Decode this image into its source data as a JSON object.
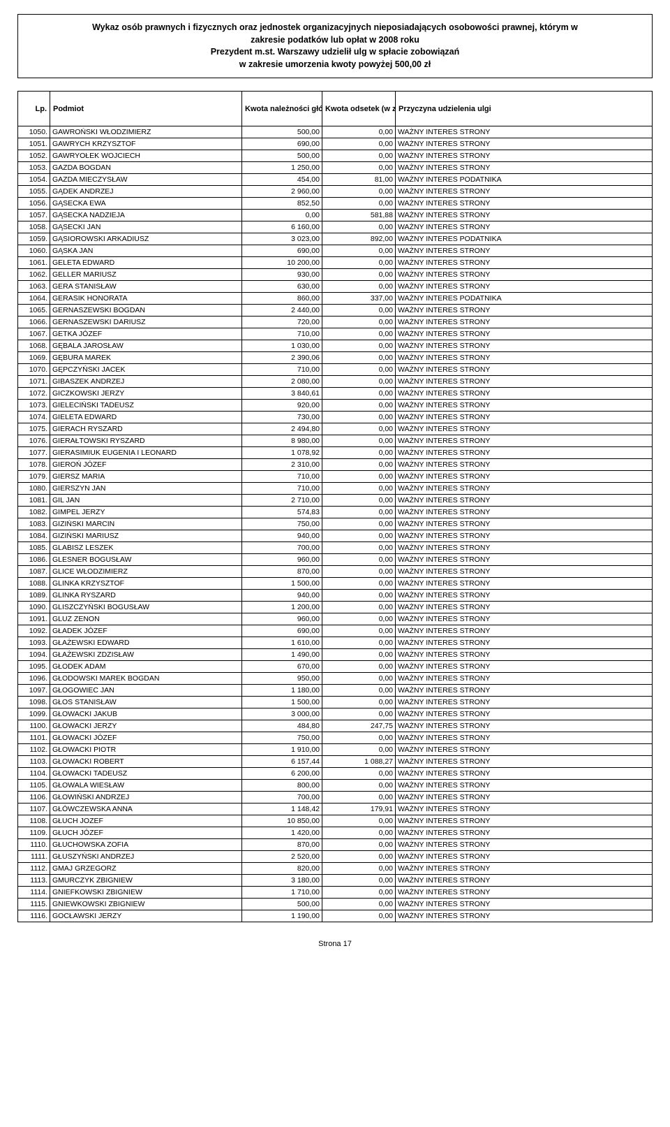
{
  "header": {
    "line1": "Wykaz osób prawnych i fizycznych oraz jednostek organizacyjnych nieposiadających osobowości prawnej, którym w",
    "line2": "zakresie podatków lub opłat w 2008 roku",
    "line3": "Prezydent m.st. Warszawy udzielił ulg w spłacie zobowiązań",
    "line4": "w zakresie umorzenia kwoty powyżej 500,00 zł"
  },
  "columns": {
    "lp": "Lp.",
    "podmiot": "Podmiot",
    "naleznosc": "Kwota należności głównej (w zł)",
    "odsetki": "Kwota odsetek (w zł)",
    "przyczyna": "Przyczyna udzielenia ulgi"
  },
  "rows": [
    {
      "lp": "1050.",
      "pod": "GAWROŃSKI WŁODZIMIERZ",
      "nal": "500,00",
      "ods": "0,00",
      "prz": "WAŻNY INTERES STRONY"
    },
    {
      "lp": "1051.",
      "pod": "GAWRYCH KRZYSZTOF",
      "nal": "690,00",
      "ods": "0,00",
      "prz": "WAŻNY INTERES STRONY"
    },
    {
      "lp": "1052.",
      "pod": "GAWRYOŁEK WOJCIECH",
      "nal": "500,00",
      "ods": "0,00",
      "prz": "WAŻNY INTERES STRONY"
    },
    {
      "lp": "1053.",
      "pod": "GAZDA BOGDAN",
      "nal": "1 250,00",
      "ods": "0,00",
      "prz": "WAŻNY INTERES STRONY"
    },
    {
      "lp": "1054.",
      "pod": "GAZDA MIECZYSŁAW",
      "nal": "454,00",
      "ods": "81,00",
      "prz": "WAŻNY INTERES PODATNIKA"
    },
    {
      "lp": "1055.",
      "pod": "GĄDEK ANDRZEJ",
      "nal": "2 960,00",
      "ods": "0,00",
      "prz": "WAŻNY INTERES STRONY"
    },
    {
      "lp": "1056.",
      "pod": "GĄSECKA EWA",
      "nal": "852,50",
      "ods": "0,00",
      "prz": "WAŻNY INTERES STRONY"
    },
    {
      "lp": "1057.",
      "pod": "GĄSECKA NADZIEJA",
      "nal": "0,00",
      "ods": "581,88",
      "prz": "WAŻNY INTERES STRONY"
    },
    {
      "lp": "1058.",
      "pod": "GĄSECKI JAN",
      "nal": "6 160,00",
      "ods": "0,00",
      "prz": "WAŻNY INTERES STRONY"
    },
    {
      "lp": "1059.",
      "pod": "GĄSIOROWSKI ARKADIUSZ",
      "nal": "3 023,00",
      "ods": "892,00",
      "prz": "WAŻNY INTERES PODATNIKA"
    },
    {
      "lp": "1060.",
      "pod": "GĄSKA JAN",
      "nal": "690,00",
      "ods": "0,00",
      "prz": "WAŻNY INTERES STRONY"
    },
    {
      "lp": "1061.",
      "pod": "GELETA EDWARD",
      "nal": "10 200,00",
      "ods": "0,00",
      "prz": "WAŻNY INTERES STRONY"
    },
    {
      "lp": "1062.",
      "pod": "GELLER MARIUSZ",
      "nal": "930,00",
      "ods": "0,00",
      "prz": "WAŻNY INTERES STRONY"
    },
    {
      "lp": "1063.",
      "pod": "GERA STANISŁAW",
      "nal": "630,00",
      "ods": "0,00",
      "prz": "WAŻNY INTERES STRONY"
    },
    {
      "lp": "1064.",
      "pod": "GERASIK HONORATA",
      "nal": "860,00",
      "ods": "337,00",
      "prz": "WAŻNY INTERES PODATNIKA"
    },
    {
      "lp": "1065.",
      "pod": "GERNASZEWSKI BOGDAN",
      "nal": "2 440,00",
      "ods": "0,00",
      "prz": "WAŻNY INTERES STRONY"
    },
    {
      "lp": "1066.",
      "pod": "GERNASZEWSKI DARIUSZ",
      "nal": "720,00",
      "ods": "0,00",
      "prz": "WAŻNY INTERES STRONY"
    },
    {
      "lp": "1067.",
      "pod": "GETKA JÓZEF",
      "nal": "710,00",
      "ods": "0,00",
      "prz": "WAŻNY INTERES STRONY"
    },
    {
      "lp": "1068.",
      "pod": "GĘBALA JAROSŁAW",
      "nal": "1 030,00",
      "ods": "0,00",
      "prz": "WAŻNY INTERES STRONY"
    },
    {
      "lp": "1069.",
      "pod": "GĘBURA MAREK",
      "nal": "2 390,06",
      "ods": "0,00",
      "prz": "WAŻNY INTERES STRONY"
    },
    {
      "lp": "1070.",
      "pod": "GĘPCZYŃSKI JACEK",
      "nal": "710,00",
      "ods": "0,00",
      "prz": "WAŻNY INTERES STRONY"
    },
    {
      "lp": "1071.",
      "pod": "GIBASZEK ANDRZEJ",
      "nal": "2 080,00",
      "ods": "0,00",
      "prz": "WAŻNY INTERES STRONY"
    },
    {
      "lp": "1072.",
      "pod": "GICZKOWSKI JERZY",
      "nal": "3 840,61",
      "ods": "0,00",
      "prz": "WAŻNY INTERES STRONY"
    },
    {
      "lp": "1073.",
      "pod": "GIELECIŃSKI TADEUSZ",
      "nal": "920,00",
      "ods": "0,00",
      "prz": "WAŻNY INTERES STRONY"
    },
    {
      "lp": "1074.",
      "pod": "GIELETA EDWARD",
      "nal": "730,00",
      "ods": "0,00",
      "prz": "WAŻNY INTERES STRONY"
    },
    {
      "lp": "1075.",
      "pod": "GIERACH RYSZARD",
      "nal": "2 494,80",
      "ods": "0,00",
      "prz": "WAŻNY INTERES STRONY"
    },
    {
      "lp": "1076.",
      "pod": "GIERAŁTOWSKI RYSZARD",
      "nal": "8 980,00",
      "ods": "0,00",
      "prz": "WAŻNY INTERES STRONY"
    },
    {
      "lp": "1077.",
      "pod": "GIERASIMIUK EUGENIA I LEONARD",
      "nal": "1 078,92",
      "ods": "0,00",
      "prz": "WAŻNY INTERES STRONY"
    },
    {
      "lp": "1078.",
      "pod": "GIEROŃ JÓZEF",
      "nal": "2 310,00",
      "ods": "0,00",
      "prz": "WAŻNY INTERES STRONY"
    },
    {
      "lp": "1079.",
      "pod": "GIERSZ MARIA",
      "nal": "710,00",
      "ods": "0,00",
      "prz": "WAŻNY INTERES STRONY"
    },
    {
      "lp": "1080.",
      "pod": "GIERSZYN JAN",
      "nal": "710,00",
      "ods": "0,00",
      "prz": "WAŻNY INTERES STRONY"
    },
    {
      "lp": "1081.",
      "pod": "GIL JAN",
      "nal": "2 710,00",
      "ods": "0,00",
      "prz": "WAŻNY INTERES STRONY"
    },
    {
      "lp": "1082.",
      "pod": "GIMPEL JERZY",
      "nal": "574,83",
      "ods": "0,00",
      "prz": "WAŻNY INTERES STRONY"
    },
    {
      "lp": "1083.",
      "pod": "GIZIŃSKI MARCIN",
      "nal": "750,00",
      "ods": "0,00",
      "prz": "WAŻNY INTERES STRONY"
    },
    {
      "lp": "1084.",
      "pod": "GIZIŃSKI MARIUSZ",
      "nal": "940,00",
      "ods": "0,00",
      "prz": "WAŻNY INTERES STRONY"
    },
    {
      "lp": "1085.",
      "pod": "GLABISZ LESZEK",
      "nal": "700,00",
      "ods": "0,00",
      "prz": "WAŻNY INTERES STRONY"
    },
    {
      "lp": "1086.",
      "pod": "GLESNER BOGUSŁAW",
      "nal": "960,00",
      "ods": "0,00",
      "prz": "WAŻNY INTERES STRONY"
    },
    {
      "lp": "1087.",
      "pod": "GLICE WŁODZIMIERZ",
      "nal": "870,00",
      "ods": "0,00",
      "prz": "WAŻNY INTERES STRONY"
    },
    {
      "lp": "1088.",
      "pod": "GLINKA KRZYSZTOF",
      "nal": "1 500,00",
      "ods": "0,00",
      "prz": "WAŻNY INTERES STRONY"
    },
    {
      "lp": "1089.",
      "pod": "GLINKA RYSZARD",
      "nal": "940,00",
      "ods": "0,00",
      "prz": "WAŻNY INTERES STRONY"
    },
    {
      "lp": "1090.",
      "pod": "GLISZCZYŃSKI BOGUSŁAW",
      "nal": "1 200,00",
      "ods": "0,00",
      "prz": "WAŻNY INTERES STRONY"
    },
    {
      "lp": "1091.",
      "pod": "GLUZ ZENON",
      "nal": "960,00",
      "ods": "0,00",
      "prz": "WAŻNY INTERES STRONY"
    },
    {
      "lp": "1092.",
      "pod": "GŁADEK JÓZEF",
      "nal": "690,00",
      "ods": "0,00",
      "prz": "WAŻNY INTERES STRONY"
    },
    {
      "lp": "1093.",
      "pod": "GŁAŻEWSKI EDWARD",
      "nal": "1 610,00",
      "ods": "0,00",
      "prz": "WAŻNY INTERES STRONY"
    },
    {
      "lp": "1094.",
      "pod": "GŁAŻEWSKI ZDZISŁAW",
      "nal": "1 490,00",
      "ods": "0,00",
      "prz": "WAŻNY INTERES STRONY"
    },
    {
      "lp": "1095.",
      "pod": "GŁODEK ADAM",
      "nal": "670,00",
      "ods": "0,00",
      "prz": "WAŻNY INTERES STRONY"
    },
    {
      "lp": "1096.",
      "pod": "GŁODOWSKI MAREK BOGDAN",
      "nal": "950,00",
      "ods": "0,00",
      "prz": "WAŻNY INTERES STRONY"
    },
    {
      "lp": "1097.",
      "pod": "GŁOGOWIEC JAN",
      "nal": "1 180,00",
      "ods": "0,00",
      "prz": "WAŻNY INTERES STRONY"
    },
    {
      "lp": "1098.",
      "pod": "GŁOS STANISŁAW",
      "nal": "1 500,00",
      "ods": "0,00",
      "prz": "WAŻNY INTERES STRONY"
    },
    {
      "lp": "1099.",
      "pod": "GŁOWACKI JAKUB",
      "nal": "3 000,00",
      "ods": "0,00",
      "prz": "WAŻNY INTERES STRONY"
    },
    {
      "lp": "1100.",
      "pod": "GŁOWACKI JERZY",
      "nal": "484,80",
      "ods": "247,75",
      "prz": "WAŻNY INTERES STRONY"
    },
    {
      "lp": "1101.",
      "pod": "GŁOWACKI JÓZEF",
      "nal": "750,00",
      "ods": "0,00",
      "prz": "WAŻNY INTERES STRONY"
    },
    {
      "lp": "1102.",
      "pod": "GŁOWACKI PIOTR",
      "nal": "1 910,00",
      "ods": "0,00",
      "prz": "WAŻNY INTERES STRONY"
    },
    {
      "lp": "1103.",
      "pod": "GŁOWACKI ROBERT",
      "nal": "6 157,44",
      "ods": "1 088,27",
      "prz": "WAŻNY INTERES STRONY"
    },
    {
      "lp": "1104.",
      "pod": "GŁOWACKI TADEUSZ",
      "nal": "6 200,00",
      "ods": "0,00",
      "prz": "WAŻNY INTERES STRONY"
    },
    {
      "lp": "1105.",
      "pod": "GŁOWALA WIESŁAW",
      "nal": "800,00",
      "ods": "0,00",
      "prz": "WAŻNY INTERES STRONY"
    },
    {
      "lp": "1106.",
      "pod": "GŁOWIŃSKI ANDRZEJ",
      "nal": "700,00",
      "ods": "0,00",
      "prz": "WAŻNY INTERES STRONY"
    },
    {
      "lp": "1107.",
      "pod": "GŁÓWCZEWSKA ANNA",
      "nal": "1 148,42",
      "ods": "179,91",
      "prz": "WAŻNY INTERES STRONY"
    },
    {
      "lp": "1108.",
      "pod": "GŁUCH JOZEF",
      "nal": "10 850,00",
      "ods": "0,00",
      "prz": "WAŻNY INTERES STRONY"
    },
    {
      "lp": "1109.",
      "pod": "GŁUCH JÓZEF",
      "nal": "1 420,00",
      "ods": "0,00",
      "prz": "WAŻNY INTERES STRONY"
    },
    {
      "lp": "1110.",
      "pod": "GŁUCHOWSKA ZOFIA",
      "nal": "870,00",
      "ods": "0,00",
      "prz": "WAŻNY INTERES STRONY"
    },
    {
      "lp": "1111.",
      "pod": "GŁUSZYŃSKI ANDRZEJ",
      "nal": "2 520,00",
      "ods": "0,00",
      "prz": "WAŻNY INTERES STRONY"
    },
    {
      "lp": "1112.",
      "pod": "GMAJ GRZEGORZ",
      "nal": "820,00",
      "ods": "0,00",
      "prz": "WAŻNY INTERES STRONY"
    },
    {
      "lp": "1113.",
      "pod": "GMURCZYK ZBIGNIEW",
      "nal": "3 180,00",
      "ods": "0,00",
      "prz": "WAŻNY INTERES STRONY"
    },
    {
      "lp": "1114.",
      "pod": "GNIEFKOWSKI ZBIGNIEW",
      "nal": "1 710,00",
      "ods": "0,00",
      "prz": "WAŻNY INTERES STRONY"
    },
    {
      "lp": "1115.",
      "pod": "GNIEWKOWSKI ZBIGNIEW",
      "nal": "500,00",
      "ods": "0,00",
      "prz": "WAŻNY INTERES STRONY"
    },
    {
      "lp": "1116.",
      "pod": "GOCŁAWSKI JERZY",
      "nal": "1 190,00",
      "ods": "0,00",
      "prz": "WAŻNY INTERES STRONY"
    }
  ],
  "footer": "Strona 17"
}
